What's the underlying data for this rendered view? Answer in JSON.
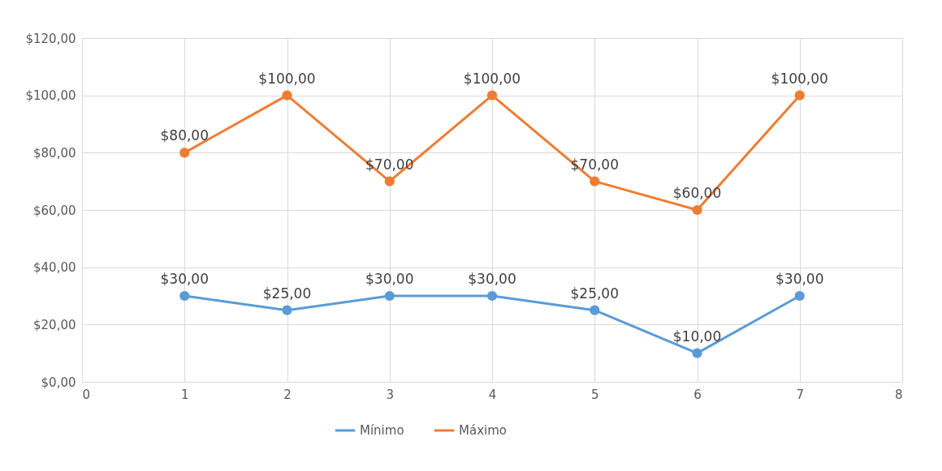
{
  "chart_data": {
    "type": "line",
    "x": [
      1,
      2,
      3,
      4,
      5,
      6,
      7
    ],
    "series": [
      {
        "name": "Mínimo",
        "color": "#5b9bd5",
        "values": [
          30,
          25,
          30,
          30,
          25,
          10,
          30
        ],
        "value_labels": [
          "$30,00",
          "$25,00",
          "$30,00",
          "$30,00",
          "$25,00",
          "$10,00",
          "$30,00"
        ]
      },
      {
        "name": "Máximo",
        "color": "#ed7d31",
        "values": [
          80,
          100,
          70,
          100,
          70,
          60,
          100
        ],
        "value_labels": [
          "$80,00",
          "$100,00",
          "$70,00",
          "$100,00",
          "$70,00",
          "$60,00",
          "$100,00"
        ]
      }
    ],
    "xlim": [
      0,
      8
    ],
    "xticks": [
      0,
      1,
      2,
      3,
      4,
      5,
      6,
      7,
      8
    ],
    "ylim": [
      0,
      120
    ],
    "yticks": [
      {
        "value": 0,
        "label": "$0,00"
      },
      {
        "value": 20,
        "label": "$20,00"
      },
      {
        "value": 40,
        "label": "$40,00"
      },
      {
        "value": 60,
        "label": "$60,00"
      },
      {
        "value": 80,
        "label": "$80,00"
      },
      {
        "value": 100,
        "label": "$100,00"
      },
      {
        "value": 120,
        "label": "$120,00"
      }
    ],
    "grid": true,
    "legend": "bottom",
    "marker": "circle",
    "line_style": "solid"
  }
}
